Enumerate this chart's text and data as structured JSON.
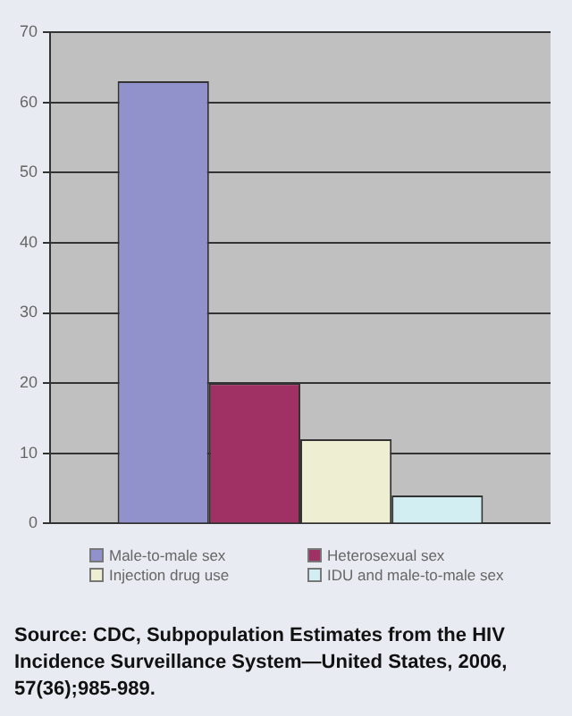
{
  "chart_data": {
    "type": "bar",
    "categories": [
      null
    ],
    "series": [
      {
        "name": "Male-to-male sex",
        "color": "#9191cc",
        "values": [
          63
        ]
      },
      {
        "name": "Heterosexual sex",
        "color": "#a03165",
        "values": [
          20
        ]
      },
      {
        "name": "Injection drug use",
        "color": "#eeeed2",
        "values": [
          12
        ]
      },
      {
        "name": "IDU and male-to-male sex",
        "color": "#d2eef2",
        "values": [
          4
        ]
      }
    ],
    "ylim": [
      0,
      70
    ],
    "yticks": [
      0,
      10,
      20,
      30,
      40,
      50,
      60,
      70
    ],
    "grid": "y",
    "legend": "bottom",
    "annotations": [
      "Source: CDC, Subpopulation Estimates from the HIV Incidence Surveillance System—United States, 2006, 57(36);985-989."
    ]
  }
}
